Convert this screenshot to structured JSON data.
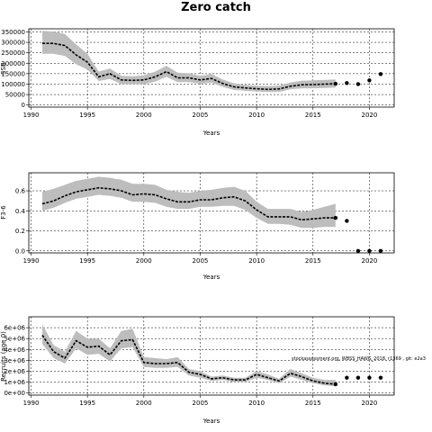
{
  "figure": {
    "title": "Zero catch",
    "annotation": "stockassessment.org, WBSS_HAWG_2018, r1369 , git: e2a3"
  },
  "chart_data": [
    {
      "type": "line",
      "title": "",
      "xlabel": "Years",
      "ylabel": "SSB",
      "xlim": [
        1989.8,
        2022.2
      ],
      "ylim": [
        -10000,
        365000
      ],
      "xticks": [
        1990,
        1995,
        2000,
        2005,
        2010,
        2015,
        2020
      ],
      "yticks": [
        0,
        50000,
        100000,
        150000,
        200000,
        250000,
        300000,
        350000
      ],
      "ytick_labels": [
        "0",
        "50000",
        "100000",
        "150000",
        "200000",
        "250000",
        "300000",
        "350000"
      ],
      "grid": true,
      "years": [
        1991,
        1992,
        1993,
        1994,
        1995,
        1996,
        1997,
        1998,
        1999,
        2000,
        2001,
        2002,
        2003,
        2004,
        2005,
        2006,
        2007,
        2008,
        2009,
        2010,
        2011,
        2012,
        2013,
        2014,
        2015,
        2016,
        2017
      ],
      "estimate": [
        295000,
        295000,
        285000,
        240000,
        205000,
        135000,
        150000,
        120000,
        118000,
        120000,
        135000,
        160000,
        130000,
        130000,
        120000,
        127000,
        103000,
        87000,
        82000,
        78000,
        75000,
        77000,
        90000,
        97000,
        98000,
        100000,
        102000
      ],
      "lower": [
        245000,
        245000,
        235000,
        195000,
        170000,
        115000,
        125000,
        100000,
        100000,
        100000,
        112000,
        135000,
        110000,
        110000,
        102000,
        107000,
        87000,
        72000,
        68000,
        65000,
        62000,
        63000,
        75000,
        80000,
        80000,
        82000,
        84000
      ],
      "upper": [
        355000,
        352000,
        340000,
        290000,
        245000,
        160000,
        175000,
        140000,
        138000,
        142000,
        160000,
        188000,
        155000,
        152000,
        140000,
        148000,
        122000,
        104000,
        97000,
        93000,
        90000,
        93000,
        108000,
        116000,
        118000,
        120000,
        122000
      ],
      "projection": {
        "x": [
          2017,
          2018,
          2019,
          2020,
          2021
        ],
        "y": [
          102000,
          105000,
          100000,
          118000,
          148000
        ]
      }
    },
    {
      "type": "line",
      "title": "",
      "xlabel": "Years",
      "ylabel": "F3-6",
      "xlim": [
        1989.8,
        2022.2
      ],
      "ylim": [
        -0.02,
        0.78
      ],
      "xticks": [
        1990,
        1995,
        2000,
        2005,
        2010,
        2015,
        2020
      ],
      "yticks": [
        0.0,
        0.2,
        0.4,
        0.6
      ],
      "ytick_labels": [
        "0.0",
        "0.2",
        "0.4",
        "0.6"
      ],
      "grid": true,
      "years": [
        1991,
        1992,
        1993,
        1994,
        1995,
        1996,
        1997,
        1998,
        1999,
        2000,
        2001,
        2002,
        2003,
        2004,
        2005,
        2006,
        2007,
        2008,
        2009,
        2010,
        2011,
        2012,
        2013,
        2014,
        2015,
        2016,
        2017
      ],
      "estimate": [
        0.47,
        0.5,
        0.55,
        0.59,
        0.61,
        0.63,
        0.62,
        0.6,
        0.56,
        0.57,
        0.56,
        0.52,
        0.49,
        0.49,
        0.51,
        0.51,
        0.53,
        0.54,
        0.5,
        0.41,
        0.34,
        0.34,
        0.34,
        0.31,
        0.32,
        0.33,
        0.33
      ],
      "lower": [
        0.4,
        0.43,
        0.48,
        0.52,
        0.54,
        0.56,
        0.55,
        0.53,
        0.49,
        0.49,
        0.48,
        0.44,
        0.42,
        0.42,
        0.44,
        0.44,
        0.45,
        0.45,
        0.41,
        0.33,
        0.27,
        0.27,
        0.26,
        0.23,
        0.23,
        0.24,
        0.24
      ],
      "upper": [
        0.59,
        0.62,
        0.66,
        0.7,
        0.72,
        0.74,
        0.73,
        0.71,
        0.67,
        0.67,
        0.66,
        0.61,
        0.59,
        0.58,
        0.6,
        0.61,
        0.63,
        0.64,
        0.6,
        0.49,
        0.42,
        0.42,
        0.42,
        0.39,
        0.41,
        0.44,
        0.47
      ],
      "projection": {
        "x": [
          2017,
          2018,
          2019,
          2020,
          2021
        ],
        "y": [
          0.33,
          0.3,
          0.0,
          0.0,
          0.0
        ]
      }
    },
    {
      "type": "line",
      "title": "",
      "xlabel": "Years",
      "ylabel": "Recruits (age 0)",
      "xlim": [
        1989.8,
        2022.2
      ],
      "ylim": [
        -200000,
        7000000
      ],
      "xticks": [
        1990,
        1995,
        2000,
        2005,
        2010,
        2015,
        2020
      ],
      "yticks": [
        0,
        1000000,
        2000000,
        3000000,
        4000000,
        5000000,
        6000000
      ],
      "ytick_labels": [
        "0e+00",
        "1e+06",
        "2e+06",
        "3e+06",
        "4e+06",
        "5e+06",
        "6e+06"
      ],
      "grid": true,
      "years": [
        1991,
        1992,
        1993,
        1994,
        1995,
        1996,
        1997,
        1998,
        1999,
        2000,
        2001,
        2002,
        2003,
        2004,
        2005,
        2006,
        2007,
        2008,
        2009,
        2010,
        2011,
        2012,
        2013,
        2014,
        2015,
        2016,
        2017
      ],
      "estimate": [
        5300000,
        3800000,
        3200000,
        4800000,
        4200000,
        4300000,
        3500000,
        4800000,
        4900000,
        2800000,
        2700000,
        2700000,
        2800000,
        1900000,
        1700000,
        1300000,
        1400000,
        1200000,
        1200000,
        1700000,
        1400000,
        1100000,
        1800000,
        1500000,
        1100000,
        900000,
        800000
      ],
      "lower": [
        4500000,
        3200000,
        2700000,
        4100000,
        3500000,
        3600000,
        2900000,
        4100000,
        4200000,
        2400000,
        2300000,
        2300000,
        2400000,
        1600000,
        1400000,
        1100000,
        1200000,
        1000000,
        1000000,
        1400000,
        1200000,
        900000,
        1500000,
        1200000,
        900000,
        700000,
        600000
      ],
      "upper": [
        6300000,
        4400000,
        3800000,
        5700000,
        5000000,
        5000000,
        4100000,
        5700000,
        5900000,
        3300000,
        3200000,
        3100000,
        3300000,
        2200000,
        2000000,
        1500000,
        1600000,
        1400000,
        1400000,
        2000000,
        1700000,
        1300000,
        2200000,
        1800000,
        1400000,
        1200000,
        1200000
      ],
      "projection": {
        "x": [
          2017,
          2018,
          2019,
          2020,
          2021
        ],
        "y": [
          800000,
          1400000,
          1400000,
          1400000,
          1400000
        ]
      }
    }
  ]
}
